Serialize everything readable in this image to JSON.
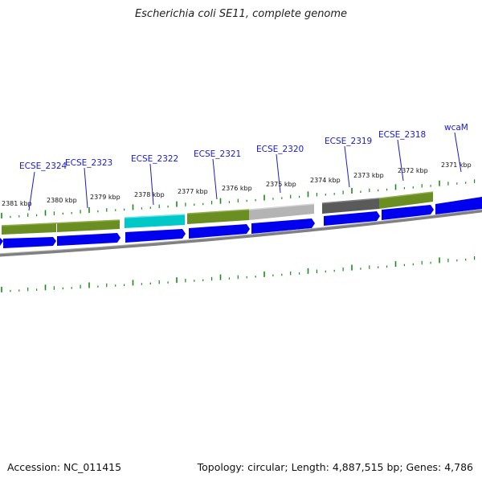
{
  "title": "Escherichia coli SE11, complete genome",
  "footer": {
    "accession": "Accession: NC_011415",
    "summary": "Topology: circular; Length: 4,887,515 bp; Genes: 4,786"
  },
  "kbp_ticks": [
    "2381 kbp",
    "2380 kbp",
    "2379 kbp",
    "2378 kbp",
    "2377 kbp",
    "2376 kbp",
    "2375 kbp",
    "2374 kbp",
    "2373 kbp",
    "2372 kbp",
    "2371 kbp"
  ],
  "gene_labels": [
    "ECSE_2324",
    "ECSE_2323",
    "ECSE_2322",
    "ECSE_2321",
    "ECSE_2320",
    "ECSE_2319",
    "ECSE_2318",
    "wcaM"
  ],
  "colors": {
    "cds_blue": "#0000ee",
    "olive": "#6b8e23",
    "cyan": "#00c8c8",
    "light_gray": "#b4b4b4",
    "dark_gray": "#5a5a5a",
    "pink": "#e0207f",
    "backbone": "#808080",
    "tick_green": "#1a8a1a",
    "label_blue": "#1a1acc"
  }
}
